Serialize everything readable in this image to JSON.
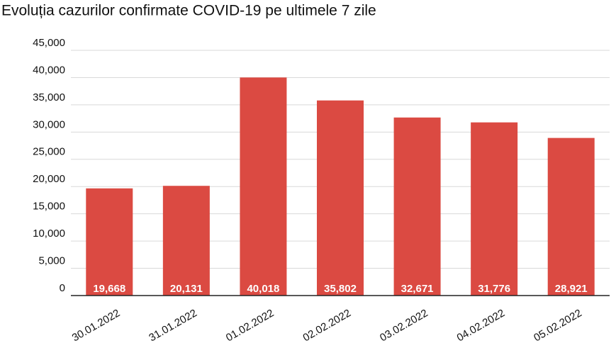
{
  "chart_data": {
    "type": "bar",
    "title": "Evoluția cazurilor confirmate COVID-19 pe ultimele 7 zile",
    "categories": [
      "30.01.2022",
      "31.01.2022",
      "01.02.2022",
      "02.02.2022",
      "03.02.2022",
      "04.02.2022",
      "05.02.2022"
    ],
    "values": [
      19668,
      20131,
      40018,
      35802,
      32671,
      31776,
      28921
    ],
    "value_labels": [
      "19,668",
      "20,131",
      "40,018",
      "35,802",
      "32,671",
      "31,776",
      "28,921"
    ],
    "color": "#db4a42",
    "ylim": [
      0,
      45000
    ],
    "yticks": [
      0,
      {
        "value": 5000,
        "label": "5,000"
      },
      {
        "value": 10000,
        "label": "10,000"
      },
      {
        "value": 15000,
        "label": "15,000"
      },
      {
        "value": 20000,
        "label": "20,000"
      },
      {
        "value": 25000,
        "label": "25,000"
      },
      {
        "value": 30000,
        "label": "30,000"
      },
      {
        "value": 35000,
        "label": "35,000"
      },
      {
        "value": 40000,
        "label": "40,000"
      },
      {
        "value": 45000,
        "label": "45,000"
      }
    ],
    "grid": true
  }
}
